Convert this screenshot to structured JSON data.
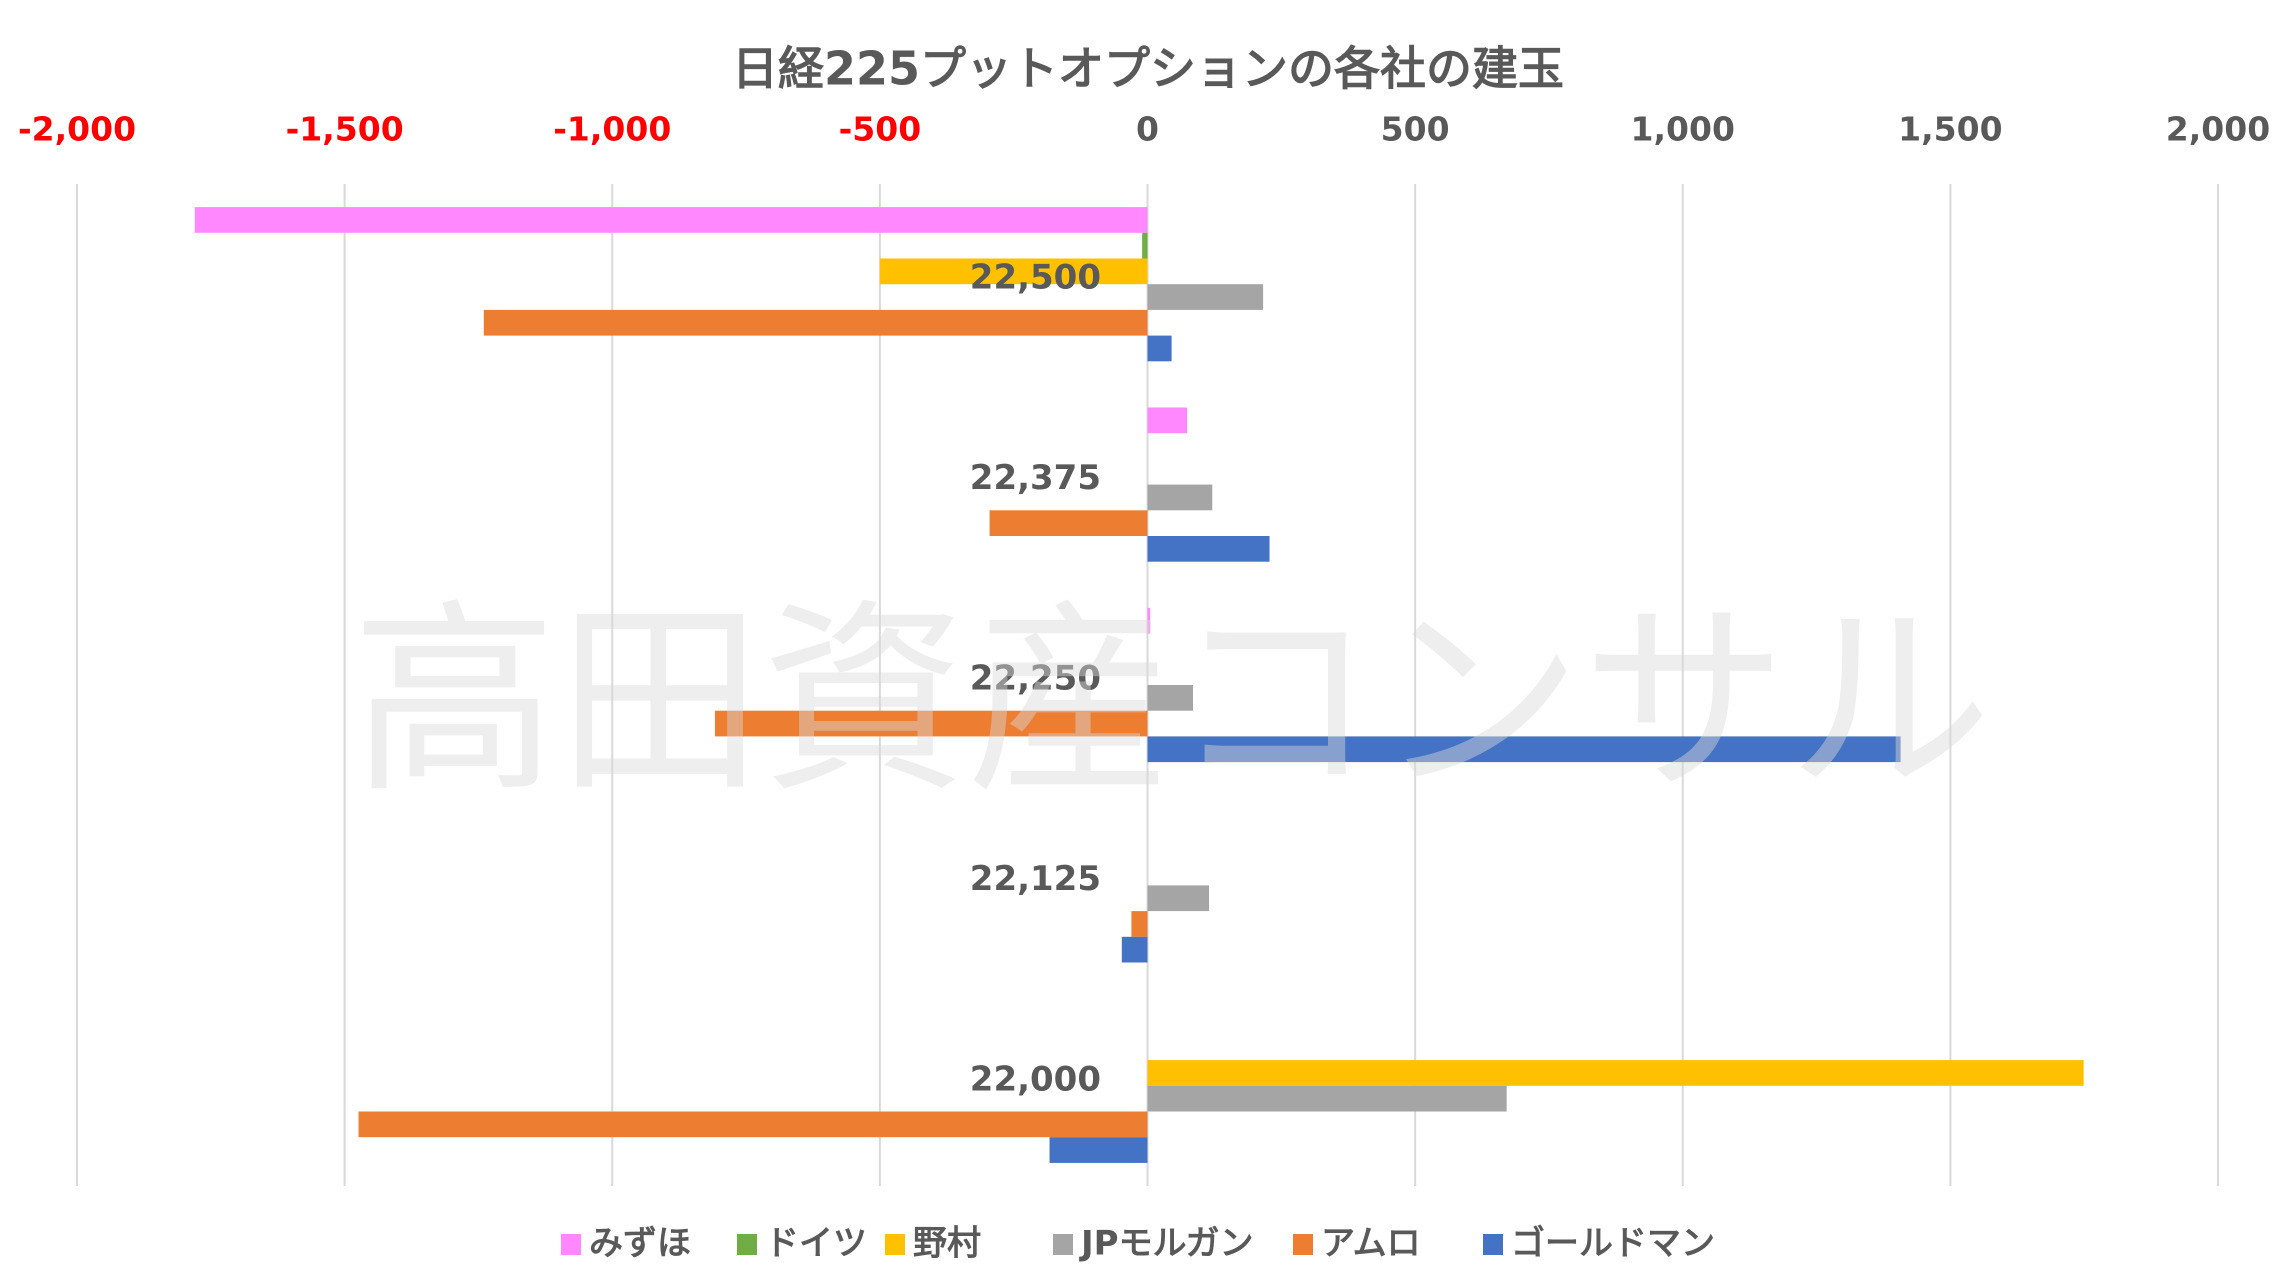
{
  "chart_data": {
    "type": "bar",
    "orientation": "horizontal",
    "title": "日経225プットオプションの各社の建玉",
    "xlabel": "",
    "ylabel": "",
    "xlim": [
      -2000,
      2000
    ],
    "x_ticks": [
      -2000,
      -1500,
      -1000,
      -500,
      0,
      500,
      1000,
      1500,
      2000
    ],
    "x_tick_labels": [
      "-2,000",
      "-1,500",
      "-1,000",
      "-500",
      "0",
      "500",
      "1,000",
      "1,500",
      "2,000"
    ],
    "negative_tick_color": "#ff0000",
    "positive_tick_color": "#595959",
    "x_axis_position": "top",
    "grid": true,
    "legend_position": "bottom",
    "categories": [
      "22,500",
      "22,375",
      "22,250",
      "22,125",
      "22,000"
    ],
    "series": [
      {
        "name": "みずほ",
        "color": "#ff88ff",
        "values": [
          -1780,
          74,
          5,
          null,
          null
        ]
      },
      {
        "name": "ドイツ",
        "color": "#70ad47",
        "values": [
          -10,
          null,
          null,
          null,
          null
        ]
      },
      {
        "name": "野村",
        "color": "#ffc000",
        "values": [
          -500,
          null,
          null,
          null,
          1749
        ]
      },
      {
        "name": "JPモルガン",
        "color": "#a5a5a5",
        "values": [
          216,
          121,
          85,
          115,
          671
        ]
      },
      {
        "name": "アムロ",
        "color": "#ed7d31",
        "values": [
          -1240,
          -295,
          -808,
          -30,
          -1474
        ]
      },
      {
        "name": "ゴールドマン",
        "color": "#4472c4",
        "values": [
          45,
          228,
          1407,
          -48,
          -183
        ]
      }
    ],
    "watermark": "高田資産コンサル"
  }
}
